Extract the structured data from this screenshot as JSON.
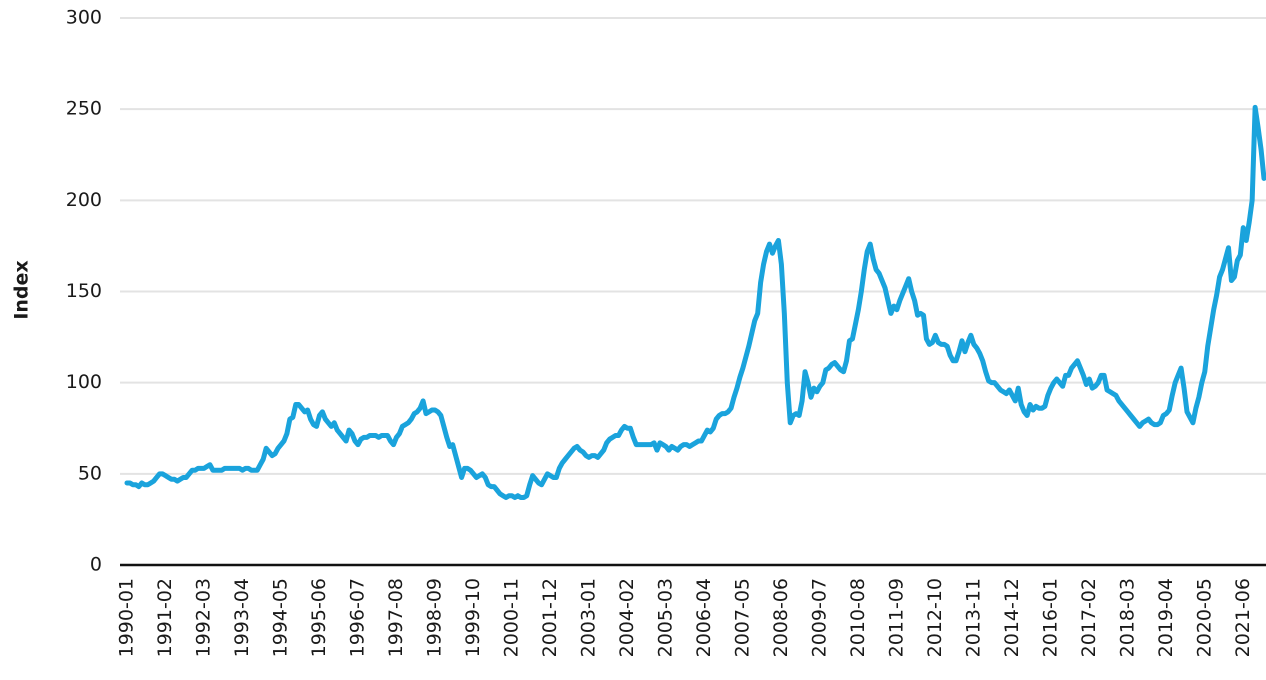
{
  "chart_data": {
    "type": "line",
    "y_label": "Index",
    "color": "#1aa3dc",
    "grid": true,
    "ylim": [
      0,
      300
    ],
    "yticks": [
      0,
      50,
      100,
      150,
      200,
      250,
      300
    ],
    "categories": [
      "1990-01",
      null,
      null,
      null,
      null,
      null,
      null,
      null,
      null,
      null,
      null,
      null,
      null,
      "1991-02",
      null,
      null,
      null,
      null,
      null,
      null,
      null,
      null,
      null,
      null,
      null,
      null,
      "1992-03",
      null,
      null,
      null,
      null,
      null,
      null,
      null,
      null,
      null,
      null,
      null,
      null,
      "1993-04",
      null,
      null,
      null,
      null,
      null,
      null,
      null,
      null,
      null,
      null,
      null,
      null,
      "1994-05",
      null,
      null,
      null,
      null,
      null,
      null,
      null,
      null,
      null,
      null,
      null,
      null,
      "1995-06",
      null,
      null,
      null,
      null,
      null,
      null,
      null,
      null,
      null,
      null,
      null,
      null,
      "1996-07",
      null,
      null,
      null,
      null,
      null,
      null,
      null,
      null,
      null,
      null,
      null,
      null,
      "1997-08",
      null,
      null,
      null,
      null,
      null,
      null,
      null,
      null,
      null,
      null,
      null,
      null,
      "1998-09",
      null,
      null,
      null,
      null,
      null,
      null,
      null,
      null,
      null,
      null,
      null,
      null,
      "1999-10",
      null,
      null,
      null,
      null,
      null,
      null,
      null,
      null,
      null,
      null,
      null,
      null,
      "2000-11",
      null,
      null,
      null,
      null,
      null,
      null,
      null,
      null,
      null,
      null,
      null,
      null,
      "2001-12",
      null,
      null,
      null,
      null,
      null,
      null,
      null,
      null,
      null,
      null,
      null,
      null,
      "2003-01",
      null,
      null,
      null,
      null,
      null,
      null,
      null,
      null,
      null,
      null,
      null,
      null,
      "2004-02",
      null,
      null,
      null,
      null,
      null,
      null,
      null,
      null,
      null,
      null,
      null,
      null,
      "2005-03",
      null,
      null,
      null,
      null,
      null,
      null,
      null,
      null,
      null,
      null,
      null,
      null,
      "2006-04",
      null,
      null,
      null,
      null,
      null,
      null,
      null,
      null,
      null,
      null,
      null,
      null,
      "2007-05",
      null,
      null,
      null,
      null,
      null,
      null,
      null,
      null,
      null,
      null,
      null,
      null,
      "2008-06",
      null,
      null,
      null,
      null,
      null,
      null,
      null,
      null,
      null,
      null,
      null,
      null,
      "2009-07",
      null,
      null,
      null,
      null,
      null,
      null,
      null,
      null,
      null,
      null,
      null,
      null,
      "2010-08",
      null,
      null,
      null,
      null,
      null,
      null,
      null,
      null,
      null,
      null,
      null,
      null,
      "2011-09",
      null,
      null,
      null,
      null,
      null,
      null,
      null,
      null,
      null,
      null,
      null,
      null,
      "2012-10",
      null,
      null,
      null,
      null,
      null,
      null,
      null,
      null,
      null,
      null,
      null,
      null,
      "2013-11",
      null,
      null,
      null,
      null,
      null,
      null,
      null,
      null,
      null,
      null,
      null,
      null,
      "2014-12",
      null,
      null,
      null,
      null,
      null,
      null,
      null,
      null,
      null,
      null,
      null,
      null,
      "2016-01",
      null,
      null,
      null,
      null,
      null,
      null,
      null,
      null,
      null,
      null,
      null,
      null,
      "2017-02",
      null,
      null,
      null,
      null,
      null,
      null,
      null,
      null,
      null,
      null,
      null,
      null,
      "2018-03",
      null,
      null,
      null,
      null,
      null,
      null,
      null,
      null,
      null,
      null,
      null,
      null,
      "2019-04",
      null,
      null,
      null,
      null,
      null,
      null,
      null,
      null,
      null,
      null,
      null,
      null,
      "2020-05",
      null,
      null,
      null,
      null,
      null,
      null,
      null,
      null,
      null,
      null,
      null,
      null,
      "2021-06",
      null,
      null,
      null,
      null,
      null,
      null,
      null
    ],
    "values": [
      45,
      45,
      44,
      44,
      43,
      45,
      44,
      44,
      45,
      46,
      48,
      50,
      50,
      49,
      48,
      47,
      47,
      46,
      47,
      48,
      48,
      50,
      52,
      52,
      53,
      53,
      53,
      54,
      55,
      52,
      52,
      52,
      52,
      53,
      53,
      53,
      53,
      53,
      53,
      52,
      53,
      53,
      52,
      52,
      52,
      55,
      58,
      64,
      62,
      60,
      61,
      64,
      66,
      68,
      72,
      80,
      81,
      88,
      88,
      86,
      84,
      85,
      80,
      77,
      76,
      82,
      84,
      80,
      78,
      76,
      78,
      74,
      72,
      70,
      68,
      74,
      72,
      68,
      66,
      69,
      70,
      70,
      71,
      71,
      71,
      70,
      71,
      71,
      71,
      68,
      66,
      70,
      72,
      76,
      77,
      78,
      80,
      83,
      84,
      86,
      90,
      83,
      84,
      85,
      85,
      84,
      82,
      76,
      70,
      65,
      66,
      60,
      54,
      48,
      53,
      53,
      52,
      50,
      48,
      49,
      50,
      48,
      44,
      43,
      43,
      41,
      39,
      38,
      37,
      38,
      38,
      37,
      38,
      37,
      37,
      38,
      44,
      49,
      47,
      45,
      44,
      47,
      50,
      49,
      48,
      48,
      53,
      56,
      58,
      60,
      62,
      64,
      65,
      63,
      62,
      60,
      59,
      60,
      60,
      59,
      61,
      63,
      67,
      69,
      70,
      71,
      71,
      74,
      76,
      75,
      75,
      70,
      66,
      66,
      66,
      66,
      66,
      66,
      67,
      63,
      67,
      66,
      65,
      63,
      65,
      64,
      63,
      65,
      66,
      66,
      65,
      66,
      67,
      68,
      68,
      71,
      74,
      73,
      75,
      80,
      82,
      83,
      83,
      84,
      86,
      92,
      97,
      103,
      108,
      114,
      120,
      127,
      134,
      138,
      155,
      165,
      172,
      176,
      171,
      175,
      178,
      165,
      138,
      100,
      78,
      82,
      83,
      82,
      90,
      106,
      100,
      92,
      97,
      95,
      98,
      100,
      107,
      108,
      110,
      111,
      109,
      107,
      106,
      112,
      123,
      124,
      132,
      140,
      150,
      162,
      172,
      176,
      168,
      162,
      160,
      156,
      152,
      145,
      138,
      142,
      140,
      145,
      149,
      153,
      157,
      150,
      145,
      137,
      138,
      137,
      124,
      121,
      122,
      126,
      122,
      121,
      121,
      120,
      115,
      112,
      112,
      117,
      123,
      117,
      122,
      126,
      121,
      119,
      116,
      112,
      106,
      101,
      100,
      100,
      98,
      96,
      95,
      94,
      96,
      93,
      90,
      97,
      88,
      84,
      82,
      88,
      85,
      87,
      86,
      86,
      87,
      93,
      97,
      100,
      102,
      100,
      98,
      104,
      104,
      108,
      110,
      112,
      108,
      104,
      99,
      102,
      97,
      98,
      100,
      104,
      104,
      96,
      95,
      94,
      93,
      90,
      88,
      86,
      84,
      82,
      80,
      78,
      76,
      78,
      79,
      80,
      78,
      77,
      77,
      78,
      82,
      83,
      85,
      93,
      100,
      104,
      108,
      97,
      84,
      81,
      78,
      86,
      92,
      100,
      106,
      120,
      130,
      140,
      148,
      158,
      162,
      168,
      174,
      156,
      158,
      167,
      170,
      185,
      178,
      188,
      200,
      251,
      240,
      228,
      212
    ]
  }
}
